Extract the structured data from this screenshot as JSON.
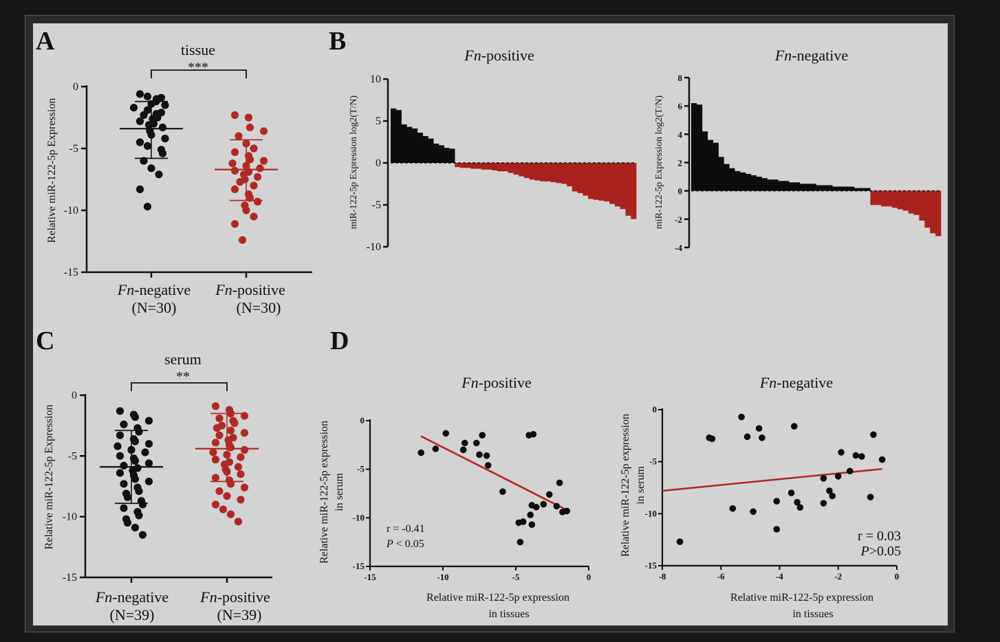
{
  "panels": {
    "A": {
      "letter": "A"
    },
    "B": {
      "letter": "B"
    },
    "C": {
      "letter": "C"
    },
    "D": {
      "letter": "D"
    }
  },
  "chart_data": [
    {
      "id": "A",
      "type": "scatter",
      "title": "tissue",
      "significance": "***",
      "ylabel": "Relative miR-122-5p Expression",
      "ylim": [
        -15,
        0
      ],
      "yticks": [
        "0",
        "-5",
        "-10",
        "-15"
      ],
      "categories": [
        {
          "name_italic": "Fn",
          "name_rest": "-negative",
          "n": "(N=30)"
        },
        {
          "name_italic": "Fn",
          "name_rest": "-positive",
          "n": "(N=30)"
        }
      ],
      "series": [
        {
          "color": "#111111",
          "mean": -3.4,
          "sd_low": -5.8,
          "sd_high": -1.2,
          "values": [
            -0.6,
            -0.8,
            -0.9,
            -1.0,
            -1.2,
            -1.4,
            -1.5,
            -1.7,
            -1.9,
            -2.1,
            -2.2,
            -2.3,
            -2.5,
            -2.6,
            -2.8,
            -3.0,
            -3.1,
            -3.3,
            -3.6,
            -3.9,
            -4.2,
            -4.5,
            -4.8,
            -5.1,
            -5.4,
            -6.0,
            -6.6,
            -7.1,
            -8.3,
            -9.7
          ]
        },
        {
          "color": "#b02a25",
          "mean": -6.7,
          "sd_low": -9.2,
          "sd_high": -4.3,
          "values": [
            -2.3,
            -2.5,
            -3.3,
            -3.6,
            -4.0,
            -4.6,
            -5.0,
            -5.3,
            -5.6,
            -5.9,
            -6.0,
            -6.2,
            -6.4,
            -6.6,
            -6.8,
            -6.9,
            -7.1,
            -7.3,
            -7.5,
            -7.7,
            -8.0,
            -8.3,
            -8.7,
            -9.0,
            -9.3,
            -9.6,
            -10.0,
            -10.5,
            -11.1,
            -12.4
          ]
        }
      ]
    },
    {
      "id": "B1",
      "type": "bar",
      "title_italic": "Fn",
      "title_rest": "-positive",
      "ylabel": "miR-122-5p Expression  log2(T/N)",
      "ylim": [
        -10,
        10
      ],
      "yticks": [
        "10",
        "5",
        "0",
        "-5",
        "-10"
      ],
      "values": [
        6.5,
        6.3,
        4.6,
        4.3,
        4.1,
        3.6,
        3.2,
        2.9,
        2.3,
        2.1,
        1.8,
        1.7,
        -0.5,
        -0.6,
        -0.6,
        -0.7,
        -0.7,
        -0.8,
        -0.8,
        -0.9,
        -1.0,
        -1.0,
        -1.2,
        -1.4,
        -1.6,
        -1.8,
        -2.0,
        -2.1,
        -2.2,
        -2.2,
        -2.3,
        -2.4,
        -2.5,
        -2.8,
        -3.4,
        -3.6,
        -3.9,
        -4.3,
        -4.4,
        -4.5,
        -4.6,
        -4.9,
        -5.2,
        -5.5,
        -6.3,
        -6.7
      ]
    },
    {
      "id": "B2",
      "type": "bar",
      "title_italic": "Fn",
      "title_rest": "-negative",
      "ylabel": "miR-122-5p Expression  log2(T/N)",
      "ylim": [
        -4,
        8
      ],
      "yticks": [
        "8",
        "6",
        "4",
        "2",
        "0",
        "-2",
        "-4"
      ],
      "values": [
        6.2,
        6.1,
        4.2,
        3.6,
        3.4,
        2.4,
        1.9,
        1.6,
        1.4,
        1.3,
        1.2,
        1.1,
        1.0,
        0.9,
        0.8,
        0.8,
        0.7,
        0.7,
        0.6,
        0.6,
        0.5,
        0.5,
        0.5,
        0.4,
        0.4,
        0.4,
        0.3,
        0.3,
        0.3,
        0.3,
        0.2,
        0.2,
        0.2,
        -1.0,
        -1.0,
        -1.1,
        -1.1,
        -1.2,
        -1.3,
        -1.4,
        -1.6,
        -1.7,
        -2.1,
        -2.6,
        -3.0,
        -3.2
      ]
    },
    {
      "id": "C",
      "type": "scatter",
      "title": "serum",
      "significance": "**",
      "ylabel": "Relative miR-122-5p Expression",
      "ylim": [
        -15,
        0
      ],
      "yticks": [
        "0",
        "-5",
        "-10",
        "-15"
      ],
      "categories": [
        {
          "name_italic": "Fn",
          "name_rest": "-negative",
          "n": "(N=39)"
        },
        {
          "name_italic": "Fn",
          "name_rest": "-positive",
          "n": "(N=39)"
        }
      ],
      "series": [
        {
          "color": "#111111",
          "mean": -5.9,
          "sd_low": -8.9,
          "sd_high": -2.9,
          "values": [
            -1.3,
            -1.6,
            -1.8,
            -2.1,
            -2.4,
            -2.7,
            -3.0,
            -3.3,
            -3.6,
            -3.8,
            -4.0,
            -4.2,
            -4.5,
            -4.7,
            -5.0,
            -5.2,
            -5.4,
            -5.6,
            -5.8,
            -6.0,
            -6.2,
            -6.4,
            -6.6,
            -6.9,
            -7.1,
            -7.3,
            -7.6,
            -7.9,
            -8.1,
            -8.4,
            -8.7,
            -9.0,
            -9.3,
            -9.6,
            -9.9,
            -10.2,
            -10.5,
            -10.9,
            -11.5
          ]
        },
        {
          "color": "#b02a25",
          "mean": -4.4,
          "sd_low": -7.1,
          "sd_high": -1.5,
          "values": [
            -0.9,
            -1.2,
            -1.5,
            -1.7,
            -1.9,
            -2.1,
            -2.3,
            -2.5,
            -2.7,
            -2.9,
            -3.1,
            -3.3,
            -3.5,
            -3.7,
            -3.9,
            -4.1,
            -4.3,
            -4.5,
            -4.7,
            -4.9,
            -5.1,
            -5.3,
            -5.5,
            -5.7,
            -5.9,
            -6.1,
            -6.3,
            -6.5,
            -6.8,
            -7.0,
            -7.3,
            -7.6,
            -7.9,
            -8.3,
            -8.6,
            -9.0,
            -9.4,
            -9.8,
            -10.4
          ]
        }
      ]
    },
    {
      "id": "D1",
      "type": "scatter",
      "title_italic": "Fn",
      "title_rest": "-positive",
      "xlabel": [
        "Relative miR-122-5p expression",
        "in tissues"
      ],
      "ylabel": [
        "Relative miR-122-5p expression",
        "in serum"
      ],
      "xlim": [
        -15,
        0
      ],
      "ylim": [
        -15,
        0
      ],
      "xticks": [
        "-15",
        "-10",
        "-5",
        "0"
      ],
      "yticks": [
        "0",
        "-5",
        "-10",
        "-15"
      ],
      "stat_r": "r = -0.41",
      "stat_p_italic": "P",
      "stat_p_rest": " < 0.05",
      "fit_line": {
        "x": [
          -11.5,
          -1.5
        ],
        "y": [
          -1.6,
          -9.2
        ],
        "color": "#b02a25"
      },
      "points": [
        [
          -11.5,
          -3.3
        ],
        [
          -10.5,
          -2.9
        ],
        [
          -9.8,
          -1.3
        ],
        [
          -8.5,
          -2.3
        ],
        [
          -8.6,
          -3.0
        ],
        [
          -7.7,
          -2.3
        ],
        [
          -7.5,
          -3.5
        ],
        [
          -7.3,
          -1.5
        ],
        [
          -7.0,
          -3.6
        ],
        [
          -6.9,
          -4.6
        ],
        [
          -5.9,
          -7.3
        ],
        [
          -4.7,
          -12.5
        ],
        [
          -4.8,
          -10.5
        ],
        [
          -4.5,
          -10.4
        ],
        [
          -4.1,
          -1.5
        ],
        [
          -3.8,
          -1.4
        ],
        [
          -3.9,
          -8.7
        ],
        [
          -4.0,
          -9.7
        ],
        [
          -3.9,
          -10.7
        ],
        [
          -3.6,
          -8.9
        ],
        [
          -3.1,
          -8.6
        ],
        [
          -2.7,
          -7.6
        ],
        [
          -2.2,
          -8.8
        ],
        [
          -2.0,
          -6.4
        ],
        [
          -1.8,
          -9.4
        ],
        [
          -1.5,
          -9.3
        ]
      ]
    },
    {
      "id": "D2",
      "type": "scatter",
      "title_italic": "Fn",
      "title_rest": "-negative",
      "xlabel": [
        "Relative miR-122-5p expression",
        "in tissues"
      ],
      "ylabel": [
        "Relative miR-122-5p expression",
        "in serum"
      ],
      "xlim": [
        -8,
        0
      ],
      "ylim": [
        -15,
        0
      ],
      "xticks": [
        "-8",
        "-6",
        "-4",
        "-2",
        "0"
      ],
      "yticks": [
        "0",
        "-5",
        "-10",
        "-15"
      ],
      "stat_r": "r = 0.03",
      "stat_p_italic": "P",
      "stat_p_rest": ">0.05",
      "fit_line": {
        "x": [
          -8.0,
          -0.5
        ],
        "y": [
          -7.8,
          -5.7
        ],
        "color": "#b02a25"
      },
      "points": [
        [
          -7.4,
          -12.7
        ],
        [
          -6.4,
          -2.7
        ],
        [
          -6.3,
          -2.8
        ],
        [
          -5.6,
          -9.5
        ],
        [
          -5.3,
          -0.7
        ],
        [
          -5.1,
          -2.6
        ],
        [
          -4.9,
          -9.8
        ],
        [
          -4.7,
          -1.8
        ],
        [
          -4.6,
          -2.7
        ],
        [
          -4.1,
          -8.8
        ],
        [
          -4.1,
          -11.5
        ],
        [
          -3.6,
          -8.0
        ],
        [
          -3.5,
          -1.6
        ],
        [
          -3.4,
          -8.9
        ],
        [
          -3.3,
          -9.4
        ],
        [
          -2.5,
          -6.6
        ],
        [
          -2.5,
          -9.0
        ],
        [
          -2.3,
          -7.8
        ],
        [
          -2.2,
          -8.3
        ],
        [
          -2.0,
          -6.4
        ],
        [
          -1.9,
          -4.1
        ],
        [
          -1.6,
          -5.9
        ],
        [
          -1.4,
          -4.4
        ],
        [
          -1.2,
          -4.5
        ],
        [
          -0.9,
          -8.4
        ],
        [
          -0.8,
          -2.4
        ],
        [
          -0.5,
          -4.8
        ]
      ]
    }
  ]
}
